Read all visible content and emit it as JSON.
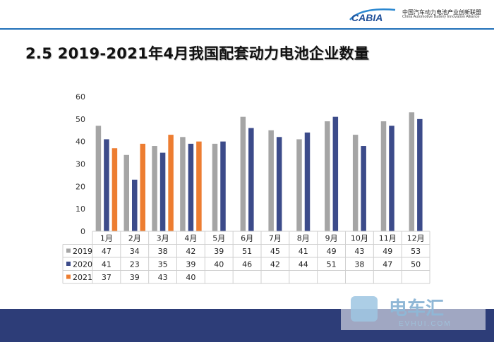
{
  "header": {
    "logo_name": "CABIA",
    "logo_cn": "中国汽车动力电池产业创新联盟",
    "logo_en": "China Automotive Battery Innovation Alliance"
  },
  "slide": {
    "title": "2.5 2019-2021年4月我国配套动力电池企业数量"
  },
  "watermark": {
    "cn": "电车汇",
    "en": "EVHUI.COM"
  },
  "colors": {
    "series_2019": "#a5a5a5",
    "series_2020": "#3c4b8a",
    "series_2021": "#ed7d31",
    "footer": "#2d3d78",
    "header_line": "#1f6fb8"
  },
  "chart_data": {
    "type": "bar",
    "categories": [
      "1月",
      "2月",
      "3月",
      "4月",
      "5月",
      "6月",
      "7月",
      "8月",
      "9月",
      "10月",
      "11月",
      "12月"
    ],
    "series": [
      {
        "name": "2019",
        "values": [
          47,
          34,
          38,
          42,
          39,
          51,
          45,
          41,
          49,
          43,
          49,
          53
        ]
      },
      {
        "name": "2020",
        "values": [
          41,
          23,
          35,
          39,
          40,
          46,
          42,
          44,
          51,
          38,
          47,
          50
        ]
      },
      {
        "name": "2021",
        "values": [
          37,
          39,
          43,
          40,
          null,
          null,
          null,
          null,
          null,
          null,
          null,
          null
        ]
      }
    ],
    "ylim": [
      0,
      60
    ],
    "yticks": [
      0,
      10,
      20,
      30,
      40,
      50,
      60
    ],
    "grid": false,
    "legend": "data-table"
  }
}
